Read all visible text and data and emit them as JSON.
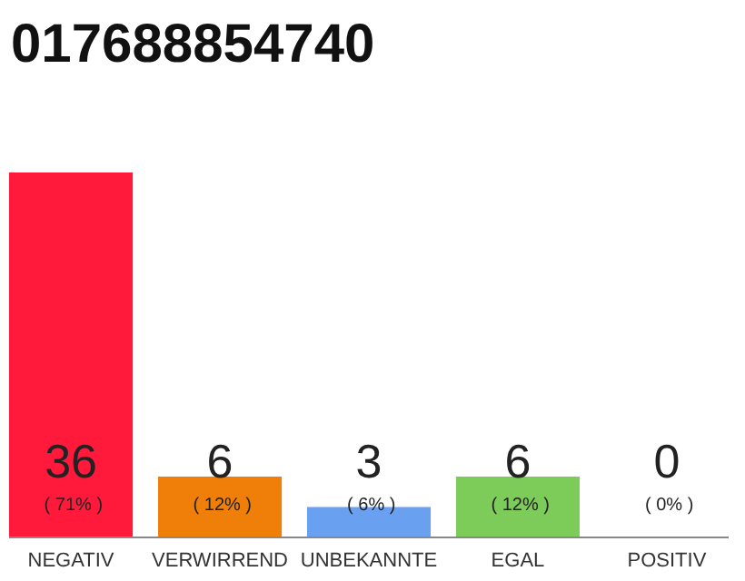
{
  "chart_data": {
    "type": "bar",
    "title": "017688854740",
    "categories": [
      "NEGATIV",
      "VERWIRREND",
      "UNBEKANNTE",
      "EGAL",
      "POSITIV"
    ],
    "values": [
      36,
      6,
      3,
      6,
      0
    ],
    "colors": [
      "#ff1a3c",
      "#f07f0a",
      "#6aa0f0",
      "#7dcc5a",
      "#3cb44b"
    ],
    "value_labels": [
      "36 ( 71% )",
      "6 ( 12% )",
      "3 ( 6% )",
      "6 ( 12% )",
      "0 ( 0% )"
    ]
  }
}
